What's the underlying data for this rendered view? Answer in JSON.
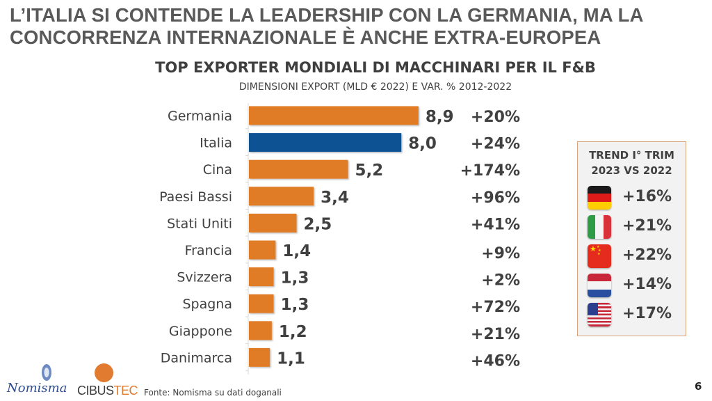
{
  "headline": {
    "line1": "L’ITALIA SI CONTENDE LA LEADERSHIP CON LA GERMANIA, MA LA",
    "line2": "CONCORRENZA INTERNAZIONALE È ANCHE EXTRA-EUROPEA"
  },
  "chart_data": {
    "type": "bar",
    "orientation": "horizontal",
    "title": "TOP EXPORTER MONDIALI DI MACCHINARI PER IL F&B",
    "subtitle": "DIMENSIONI EXPORT (MLD € 2022) E VAR. % 2012-2022",
    "xlabel": "",
    "ylabel": "",
    "categories": [
      "Germania",
      "Italia",
      "Cina",
      "Paesi Bassi",
      "Stati Uniti",
      "Francia",
      "Svizzera",
      "Spagna",
      "Giappone",
      "Danimarca"
    ],
    "series": [
      {
        "name": "Export 2022 (mld €)",
        "values": [
          8.9,
          8.0,
          5.2,
          3.4,
          2.5,
          1.4,
          1.3,
          1.3,
          1.2,
          1.1
        ],
        "value_labels": [
          "8,9",
          "8,0",
          "5,2",
          "3,4",
          "2,5",
          "1,4",
          "1,3",
          "1,3",
          "1,2",
          "1,1"
        ],
        "colors": [
          "#e07b27",
          "#0b5394",
          "#e07b27",
          "#e07b27",
          "#e07b27",
          "#e07b27",
          "#e07b27",
          "#e07b27",
          "#e07b27",
          "#e07b27"
        ]
      },
      {
        "name": "Var. % 2012-2022",
        "values": [
          20,
          24,
          174,
          96,
          41,
          9,
          2,
          72,
          21,
          46
        ],
        "value_labels": [
          "+20%",
          "+24%",
          "+174%",
          "+96%",
          "+41%",
          "+9%",
          "+2%",
          "+72%",
          "+21%",
          "+46%"
        ]
      }
    ],
    "xlim": [
      0,
      10
    ],
    "grid": false,
    "legend": "none",
    "colors": {
      "default": "#e07b27",
      "highlight": "#0b5394"
    }
  },
  "trend_box": {
    "title_line1": "TREND I° TRIM",
    "title_line2": "2023 VS 2022",
    "items": [
      {
        "country": "Germania",
        "flag": "germany-flag-icon",
        "value": "+16%"
      },
      {
        "country": "Italia",
        "flag": "italy-flag-icon",
        "value": "+21%"
      },
      {
        "country": "Cina",
        "flag": "china-flag-icon",
        "value": "+22%"
      },
      {
        "country": "Paesi Bassi",
        "flag": "netherlands-flag-icon",
        "value": "+14%"
      },
      {
        "country": "Stati Uniti",
        "flag": "usa-flag-icon",
        "value": "+17%"
      }
    ]
  },
  "footer": {
    "logo1": "Nomisma",
    "logo2_a": "CIBUS",
    "logo2_b": "TEC",
    "source": "Fonte: Nomisma su dati doganali",
    "page_number": "6"
  }
}
